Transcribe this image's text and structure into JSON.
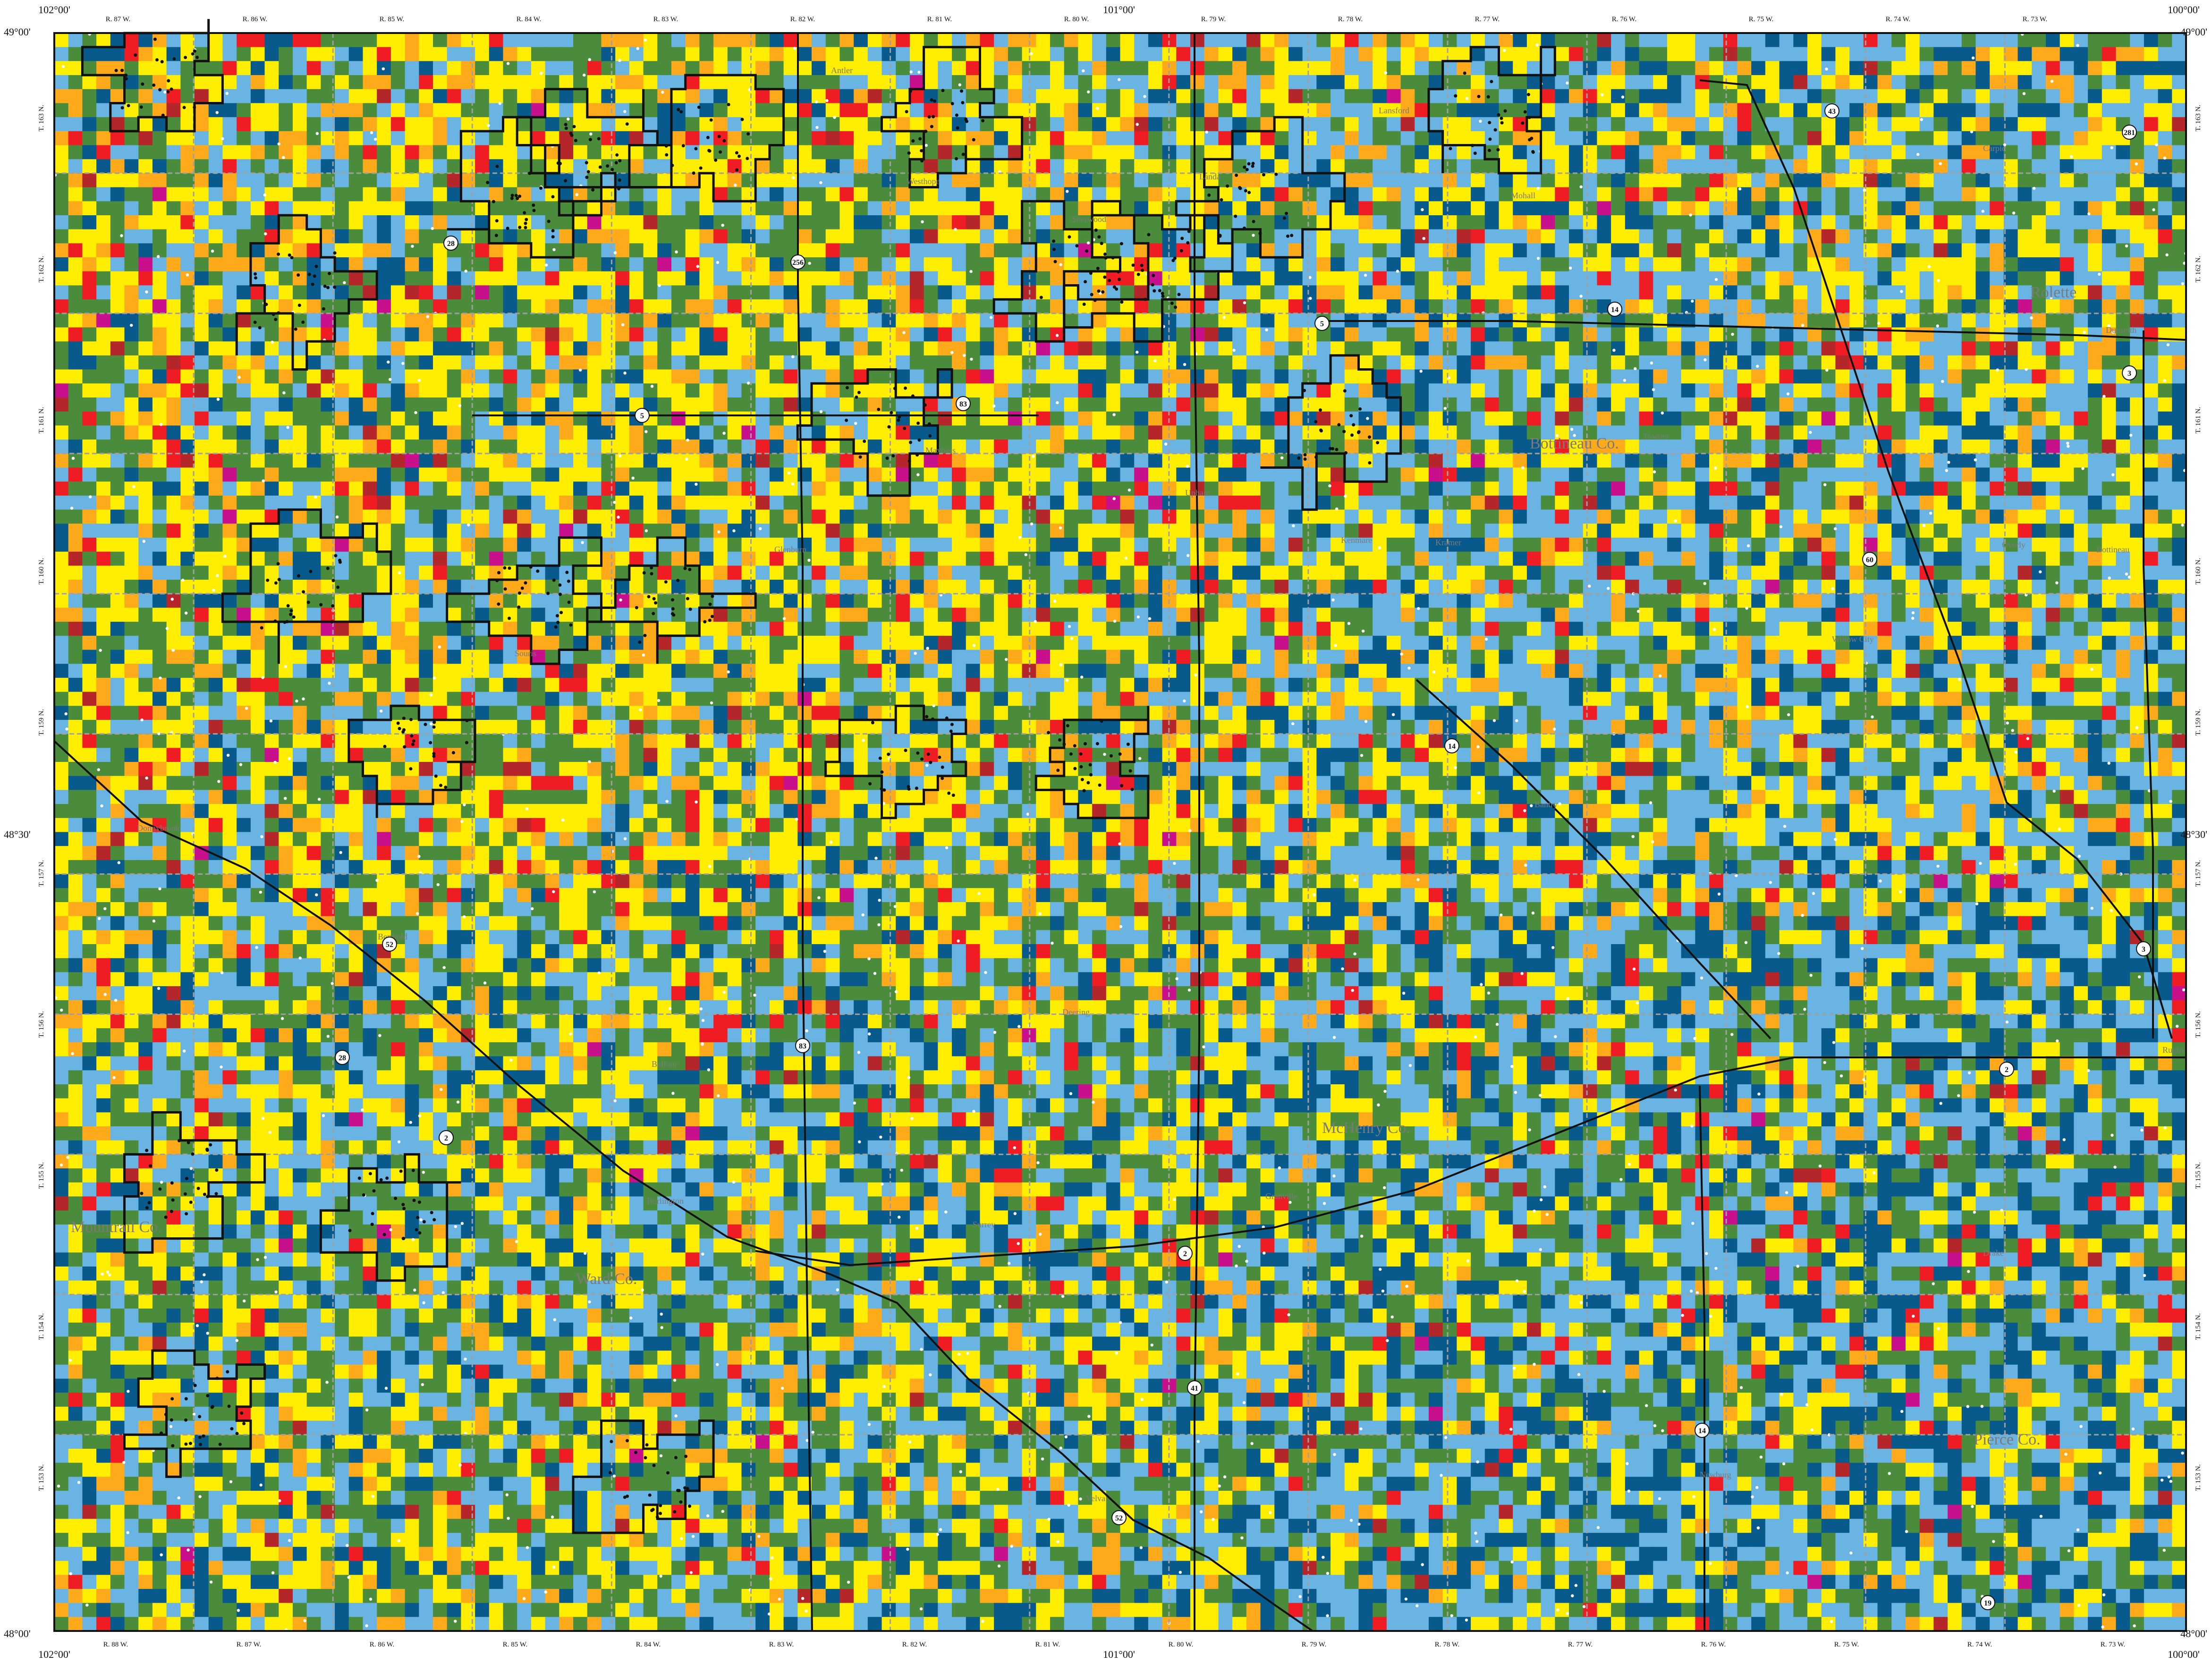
{
  "map": {
    "colors": {
      "light_blue": "#6ab4e4",
      "dark_blue": "#085a8c",
      "green": "#4a8c3c",
      "yellow": "#ffee00",
      "orange": "#ffaa1a",
      "red": "#ef1c24",
      "dark_red": "#b5262a",
      "magenta": "#c8108c",
      "road": "#111111",
      "boundary": "#111111",
      "township_line": "#a0a0a0",
      "label": "#7a7a7a"
    },
    "corner_labels": {
      "top_left": "49°00'",
      "top_right": "49°00'",
      "bottom_left": "48°00'",
      "bottom_right": "48°00'",
      "lon_top_left": "102°00'",
      "lon_top_mid": "101°00'",
      "lon_top_right": "100°00'",
      "lon_bottom_left": "102°00'",
      "lon_bottom_mid": "101°00'",
      "lon_bottom_right": "100°00'",
      "lat_mid_left": "48°30'",
      "lat_mid_right": "48°30'"
    },
    "ranges_top": [
      "R. 87 W.",
      "R. 86 W.",
      "R. 85 W.",
      "R. 84 W.",
      "R. 83 W.",
      "R. 82 W.",
      "R. 81 W.",
      "R. 80 W.",
      "R. 79 W.",
      "R. 78 W.",
      "R. 77 W.",
      "R. 76 W.",
      "R. 75 W.",
      "R. 74 W.",
      "R. 73 W."
    ],
    "ranges_bottom": [
      "R. 88 W.",
      "R. 87 W.",
      "R. 86 W.",
      "R. 85 W.",
      "R. 84 W.",
      "R. 83 W.",
      "R. 82 W.",
      "R. 81 W.",
      "R. 80 W.",
      "R. 79 W.",
      "R. 78 W.",
      "R. 77 W.",
      "R. 76 W.",
      "R. 75 W.",
      "R. 74 W.",
      "R. 73 W."
    ],
    "townships_left": [
      "T. 163 N.",
      "T. 162 N.",
      "T. 161 N.",
      "T. 160 N.",
      "T. 159 N.",
      "T. 157 N.",
      "T. 156 N.",
      "T. 155 N.",
      "T. 154 N.",
      "T. 153 N."
    ],
    "townships_right": [
      "T. 163 N.",
      "T. 162 N.",
      "T. 161 N.",
      "T. 160 N.",
      "T. 159 N.",
      "T. 157 N.",
      "T. 156 N.",
      "T. 155 N.",
      "T. 154 N.",
      "T. 153 N."
    ],
    "highway_shields": [
      "43",
      "281",
      "28",
      "256",
      "14",
      "5",
      "83",
      "5",
      "3",
      "60",
      "14",
      "52",
      "28",
      "83",
      "2",
      "2",
      "41",
      "52",
      "14",
      "2",
      "3",
      "19"
    ],
    "county_labels": [
      "Rolette",
      "Mountrail Co.",
      "Ward Co.",
      "McHenry Co.",
      "Bottineau Co.",
      "Pierce Co."
    ],
    "town_labels": [
      "Antler",
      "Westhope",
      "Landa",
      "Lansford",
      "Kramer",
      "Dunseith",
      "Willow City",
      "Bantry",
      "Deering",
      "Granville",
      "Towner",
      "Rugby",
      "Burlington",
      "Surrey",
      "Newburg",
      "Maxbass",
      "Carpio",
      "Sherwood",
      "Mohall",
      "Glenburn",
      "Upham",
      "Souris",
      "Kenmare",
      "Donnybrook",
      "Berthold",
      "Velva",
      "Drake",
      "Balfour",
      "Bottineau",
      "Overly"
    ]
  }
}
